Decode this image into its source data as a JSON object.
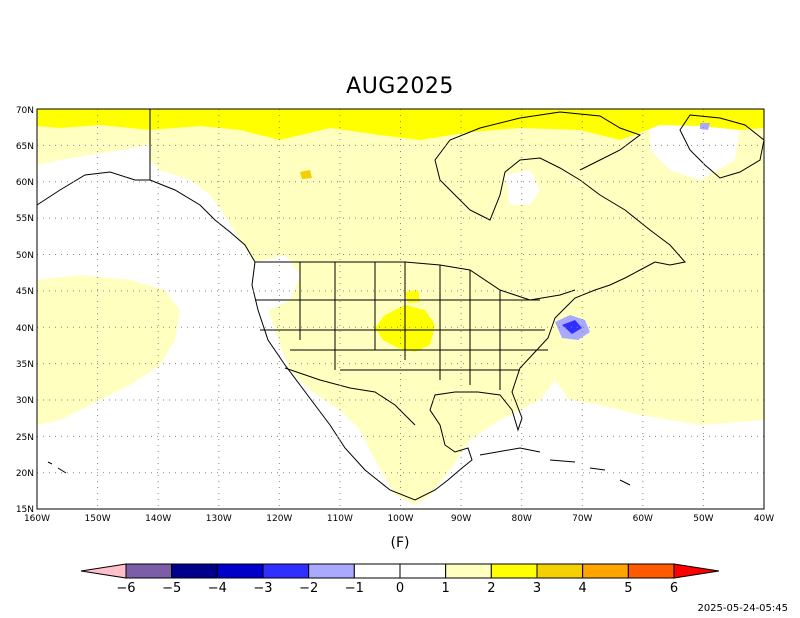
{
  "title": "AUG2025",
  "unit_label": "(F)",
  "timestamp": "2025-05-24-05:45",
  "map": {
    "region": "North America",
    "lon_range": [
      -160,
      -40
    ],
    "lat_range": [
      15,
      70
    ],
    "grid": true,
    "lat_labels": [
      "15N",
      "20N",
      "25N",
      "30N",
      "35N",
      "40N",
      "45N",
      "50N",
      "55N",
      "60N",
      "65N",
      "70N"
    ],
    "lon_labels": [
      "160W",
      "150W",
      "140W",
      "130W",
      "120W",
      "110W",
      "100W",
      "90W",
      "80W",
      "70W",
      "60W",
      "50W",
      "40W"
    ],
    "anomaly_regions": [
      {
        "name": "high-latitude band",
        "category": "2 to 3"
      },
      {
        "name": "central plains",
        "category": "2 to 3"
      },
      {
        "name": "mid-atlantic coast",
        "category": "-2 to -1"
      }
    ]
  },
  "colorbar": {
    "labels": [
      "-6",
      "-5",
      "-4",
      "-3",
      "-2",
      "-1",
      "0",
      "1",
      "2",
      "3",
      "4",
      "5",
      "6"
    ],
    "colors": [
      "#ffc0cb",
      "#7b5ea7",
      "#00008b",
      "#0000cd",
      "#2f2fff",
      "#a9a9ff",
      "#ffffff",
      "#ffffff",
      "#ffffc0",
      "#ffff00",
      "#f5d000",
      "#ffa500",
      "#ff5a00",
      "#ff0000"
    ]
  }
}
